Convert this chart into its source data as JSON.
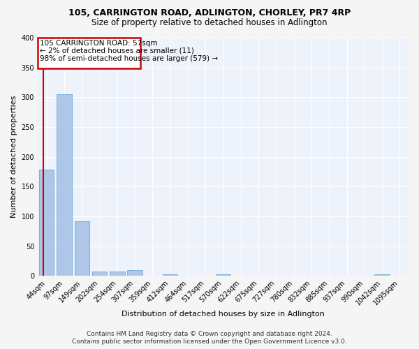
{
  "title": "105, CARRINGTON ROAD, ADLINGTON, CHORLEY, PR7 4RP",
  "subtitle": "Size of property relative to detached houses in Adlington",
  "xlabel": "Distribution of detached houses by size in Adlington",
  "ylabel": "Number of detached properties",
  "categories": [
    "44sqm",
    "97sqm",
    "149sqm",
    "202sqm",
    "254sqm",
    "307sqm",
    "359sqm",
    "412sqm",
    "464sqm",
    "517sqm",
    "570sqm",
    "622sqm",
    "675sqm",
    "727sqm",
    "780sqm",
    "832sqm",
    "885sqm",
    "937sqm",
    "990sqm",
    "1042sqm",
    "1095sqm"
  ],
  "values": [
    178,
    305,
    92,
    8,
    8,
    10,
    0,
    3,
    0,
    0,
    3,
    0,
    0,
    0,
    0,
    0,
    0,
    0,
    0,
    3,
    0
  ],
  "bar_color": "#aec6e8",
  "bar_edge_color": "#5a9fd4",
  "annotation_line1": "105 CARRINGTON ROAD: 57sqm",
  "annotation_line2": "← 2% of detached houses are smaller (11)",
  "annotation_line3": "98% of semi-detached houses are larger (579) →",
  "annotation_box_color": "#ffffff",
  "annotation_box_edge_color": "#cc0000",
  "property_line_color": "#cc0000",
  "ylim": [
    0,
    400
  ],
  "yticks": [
    0,
    50,
    100,
    150,
    200,
    250,
    300,
    350,
    400
  ],
  "footer_line1": "Contains HM Land Registry data © Crown copyright and database right 2024.",
  "footer_line2": "Contains public sector information licensed under the Open Government Licence v3.0.",
  "bg_color": "#eef2fa",
  "fig_bg_color": "#f5f5f5",
  "title_fontsize": 9,
  "subtitle_fontsize": 8.5,
  "axis_label_fontsize": 8,
  "tick_fontsize": 7,
  "annotation_fontsize": 7.5,
  "footer_fontsize": 6.5
}
